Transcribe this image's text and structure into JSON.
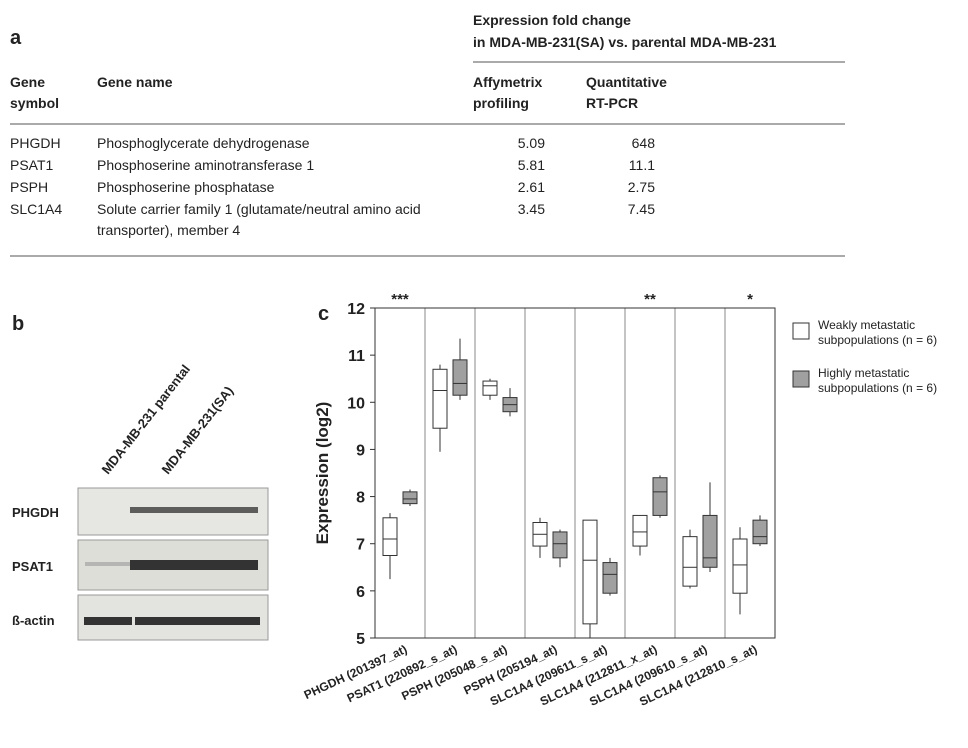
{
  "table": {
    "label": "a",
    "group_header": [
      "Expression fold change",
      "in MDA-MB-231(SA) vs. parental MDA-MB-231"
    ],
    "columns": [
      "Gene symbol",
      "Gene name",
      "Affymetrix profiling",
      "Quantitative RT-PCR"
    ],
    "rows": [
      [
        "PHGDH",
        "Phosphoglycerate dehydrogenase",
        "5.09",
        "648"
      ],
      [
        "PSAT1",
        "Phosphoserine aminotransferase 1",
        "5.81",
        "11.1"
      ],
      [
        "PSPH",
        "Phosphoserine phosphatase",
        "2.61",
        "2.75"
      ],
      [
        "SLC1A4",
        "Solute carrier family 1 (glutamate/neutral amino acid transporter), member 4",
        "3.45",
        "7.45"
      ]
    ]
  },
  "blot": {
    "label": "b",
    "lanes": [
      "MDA-MB-231 parental",
      "MDA-MB-231(SA)"
    ],
    "rows": [
      "PHGDH",
      "PSAT1",
      "ß-actin"
    ]
  },
  "chart_data": {
    "type": "box",
    "label": "c",
    "y_label": "Expression (log2)",
    "categories": [
      "PHGDH (201397_at)",
      "PSAT1 (220892_s_at)",
      "PSPH (205048_s_at)",
      "PSPH (205194_at)",
      "SLC1A4 (209611_s_at)",
      "SLC1A4 (212811_x_at)",
      "SLC1A4 (209610_s_at)",
      "SLC1A4 (212810_s_at)"
    ],
    "significance": [
      "***",
      null,
      null,
      null,
      null,
      "**",
      null,
      "*"
    ],
    "ylim": [
      5,
      12
    ],
    "yticks": [
      5,
      6,
      7,
      8,
      9,
      10,
      11,
      12
    ],
    "series": [
      {
        "name": "Weakly metastatic subpopulations (n = 6)",
        "color": "#ffffff",
        "min": [
          6.25,
          8.95,
          10.05,
          6.7,
          5.0,
          6.75,
          6.05,
          5.5
        ],
        "q1": [
          6.75,
          9.45,
          10.15,
          6.95,
          5.3,
          6.95,
          6.1,
          5.95
        ],
        "median": [
          7.1,
          10.25,
          10.35,
          7.2,
          6.65,
          7.25,
          6.5,
          6.55
        ],
        "q3": [
          7.55,
          10.7,
          10.45,
          7.45,
          7.5,
          7.6,
          7.15,
          7.1
        ],
        "max": [
          7.65,
          10.8,
          10.5,
          7.55,
          7.5,
          7.6,
          7.3,
          7.35
        ]
      },
      {
        "name": "Highly metastatic subpopulations (n = 6)",
        "color": "#a0a0a0",
        "min": [
          7.8,
          10.05,
          9.7,
          6.5,
          5.9,
          7.55,
          6.4,
          6.95
        ],
        "q1": [
          7.85,
          10.15,
          9.8,
          6.7,
          5.95,
          7.6,
          6.5,
          7.0
        ],
        "median": [
          7.95,
          10.4,
          9.95,
          7.0,
          6.35,
          8.1,
          6.7,
          7.15
        ],
        "q3": [
          8.1,
          10.9,
          10.1,
          7.25,
          6.6,
          8.4,
          7.6,
          7.5
        ],
        "max": [
          8.15,
          11.35,
          10.3,
          7.3,
          6.7,
          8.45,
          8.3,
          7.6
        ]
      }
    ]
  }
}
